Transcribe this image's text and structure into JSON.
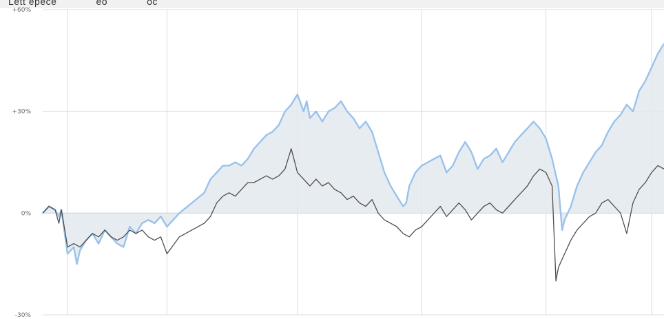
{
  "header": {
    "partial_text": "Lett еpecе             eo             oc                                                                    "
  },
  "chart_data": {
    "type": "line",
    "title": "",
    "xlabel": "",
    "ylabel": "",
    "ylim": [
      -30,
      60
    ],
    "yticks": [
      {
        "value": 60,
        "label": "+60%"
      },
      {
        "value": 30,
        "label": "+30%"
      },
      {
        "value": 0,
        "label": "0%"
      },
      {
        "value": -30,
        "label": "-30%"
      }
    ],
    "xlim": [
      0,
      100
    ],
    "x_gridlines": [
      4,
      20,
      41,
      61,
      81,
      98
    ],
    "grid": true,
    "legend": "none",
    "colors": {
      "series_blue": "#99c2ec",
      "series_dark": "#4d4d4d",
      "fill": "#e3e9ee",
      "grid": "#dcdcdc",
      "zero": "#bcc8d4"
    },
    "series": [
      {
        "style": "blue-with-fill",
        "x": [
          0,
          1,
          2,
          2.6,
          3,
          4,
          5,
          5.5,
          6,
          7,
          8,
          9,
          10,
          11,
          12,
          13,
          14,
          15,
          16,
          17,
          18,
          19,
          20,
          22,
          24,
          26,
          27,
          28,
          29,
          30,
          31,
          32,
          33,
          34,
          35,
          36,
          37,
          38,
          39,
          40,
          41,
          42,
          42.5,
          43,
          44,
          45,
          46,
          47,
          48,
          49,
          50,
          51,
          52,
          53,
          54,
          55,
          56,
          57,
          58,
          58.5,
          59,
          60,
          61,
          62,
          63,
          64,
          65,
          66,
          67,
          68,
          69,
          70,
          71,
          72,
          73,
          74,
          75,
          76,
          77,
          78,
          79,
          80,
          81,
          82,
          83,
          83.6,
          84,
          85,
          86,
          87,
          88,
          89,
          90,
          91,
          92,
          93,
          94,
          95,
          96,
          97,
          98,
          99,
          100
        ],
        "y": [
          0,
          2,
          1,
          -1,
          1,
          -12,
          -10,
          -15,
          -11,
          -8,
          -6,
          -9,
          -5,
          -7,
          -9,
          -10,
          -4,
          -6,
          -3,
          -2,
          -3,
          -1,
          -4,
          0,
          3,
          6,
          10,
          12,
          14,
          14,
          15,
          14,
          16,
          19,
          21,
          23,
          24,
          26,
          30,
          32,
          35,
          30,
          33,
          28,
          30,
          27,
          30,
          31,
          33,
          30,
          28,
          25,
          27,
          24,
          18,
          12,
          8,
          5,
          2,
          3,
          8,
          12,
          14,
          15,
          16,
          17,
          12,
          14,
          18,
          21,
          18,
          13,
          16,
          17,
          19,
          15,
          18,
          21,
          23,
          25,
          27,
          25,
          22,
          16,
          8,
          -5,
          -2,
          2,
          8,
          12,
          15,
          18,
          20,
          24,
          27,
          29,
          32,
          30,
          36,
          39,
          43,
          47,
          50
        ]
      },
      {
        "style": "dark",
        "x": [
          0,
          1,
          2,
          2.6,
          3,
          4,
          5,
          6,
          7,
          8,
          9,
          10,
          11,
          12,
          13,
          14,
          15,
          16,
          17,
          18,
          19,
          20,
          22,
          24,
          26,
          27,
          28,
          29,
          30,
          31,
          32,
          33,
          34,
          35,
          36,
          37,
          38,
          39,
          40,
          41,
          42,
          43,
          44,
          45,
          46,
          47,
          48,
          49,
          50,
          51,
          52,
          53,
          54,
          55,
          56,
          57,
          58,
          59,
          60,
          61,
          62,
          63,
          64,
          65,
          66,
          67,
          68,
          69,
          70,
          71,
          72,
          73,
          74,
          75,
          76,
          77,
          78,
          79,
          80,
          81,
          82,
          82.6,
          83,
          84,
          85,
          86,
          87,
          88,
          89,
          90,
          91,
          92,
          93,
          94,
          95,
          96,
          97,
          98,
          99,
          100
        ],
        "y": [
          0,
          2,
          1,
          -3,
          1,
          -10,
          -9,
          -10,
          -8,
          -6,
          -7,
          -5,
          -7,
          -8,
          -7,
          -5,
          -6,
          -5,
          -7,
          -8,
          -7,
          -12,
          -7,
          -5,
          -3,
          -1,
          3,
          5,
          6,
          5,
          7,
          9,
          9,
          10,
          11,
          10,
          11,
          13,
          19,
          12,
          10,
          8,
          10,
          8,
          9,
          7,
          6,
          4,
          5,
          3,
          2,
          4,
          0,
          -2,
          -3,
          -4,
          -6,
          -7,
          -5,
          -4,
          -2,
          0,
          2,
          -1,
          1,
          3,
          1,
          -2,
          0,
          2,
          3,
          1,
          0,
          2,
          4,
          6,
          8,
          11,
          13,
          12,
          8,
          -20,
          -16,
          -12,
          -8,
          -5,
          -3,
          -1,
          0,
          3,
          4,
          2,
          0,
          -6,
          3,
          7,
          9,
          12,
          14,
          13
        ]
      }
    ]
  }
}
